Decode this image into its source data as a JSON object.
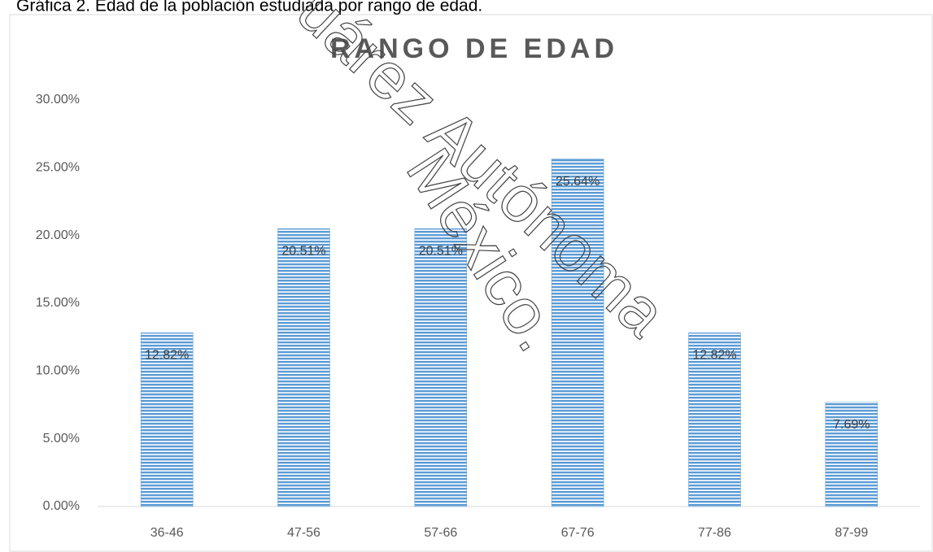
{
  "chart_data": {
    "type": "bar",
    "caption": "Gráfica 2. Edad de la población estudiada por rango de edad.",
    "title": "RANGO DE EDAD",
    "categories": [
      "36-46",
      "47-56",
      "57-66",
      "67-76",
      "77-86",
      "87-99"
    ],
    "values": [
      12.82,
      20.51,
      20.51,
      25.64,
      12.82,
      7.69
    ],
    "value_labels": [
      "12.82%",
      "20.51%",
      "20.51%",
      "25.64%",
      "12.82%",
      "7.69%"
    ],
    "color": "#5b9bd5",
    "ylim": [
      0,
      30
    ],
    "yticks": [
      {
        "value": 0,
        "label": "0.00%"
      },
      {
        "value": 5,
        "label": "5.00%"
      },
      {
        "value": 10,
        "label": "10.00%"
      },
      {
        "value": 15,
        "label": "15.00%"
      },
      {
        "value": 20,
        "label": "20.00%"
      },
      {
        "value": 25,
        "label": "25.00%"
      },
      {
        "value": 30,
        "label": "30.00%"
      }
    ],
    "grid": false,
    "watermark": [
      "uárez Autónoma",
      "México."
    ]
  }
}
